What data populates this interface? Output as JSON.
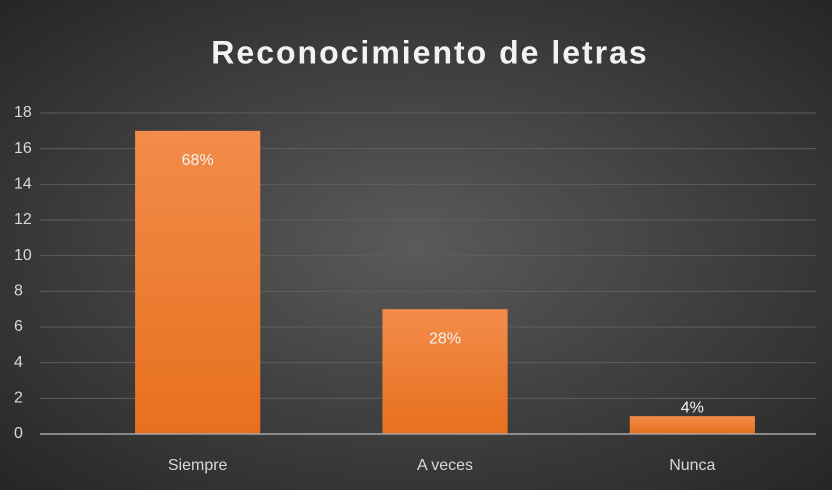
{
  "chart_data": {
    "type": "bar",
    "title": "Reconocimiento de letras",
    "categories": [
      "Siempre",
      "A veces",
      "Nunca"
    ],
    "values": [
      17,
      7,
      1
    ],
    "value_labels": [
      "68%",
      "28%",
      "4%"
    ],
    "color": "#ed7d31",
    "ylim": [
      0,
      18
    ],
    "yticks": [
      0,
      2,
      4,
      6,
      8,
      10,
      12,
      14,
      16,
      18
    ],
    "grid": true
  }
}
